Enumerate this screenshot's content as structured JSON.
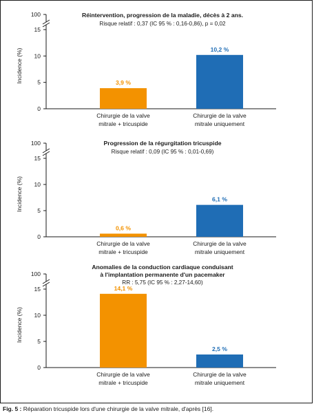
{
  "colors": {
    "orange": "#f39200",
    "blue": "#1f6db5",
    "axis": "#1a1a1a"
  },
  "chart_data": [
    {
      "type": "bar",
      "title": "Réintervention, progression de la maladie, décès à 2 ans.",
      "subtitle": "Risque relatif : 0,37 (IC 95 % : 0,16-0,86), p = 0,02",
      "ylabel": "Incidence (%)",
      "yticks": [
        "0",
        "5",
        "10",
        "15",
        "100"
      ],
      "ylim": [
        0,
        15
      ],
      "axis_break": true,
      "categories": [
        "Chirurgie de la valve mitrale + tricuspide",
        "Chirurgie de la valve mitrale uniquement"
      ],
      "category_lines": [
        [
          "Chirurgie de la valve",
          "mitrale + tricuspide"
        ],
        [
          "Chirurgie de la valve",
          "mitrale uniquement"
        ]
      ],
      "values": [
        3.9,
        10.2
      ],
      "data_labels": [
        "3,9 %",
        "10,2 %"
      ],
      "bar_colors": [
        "orange",
        "blue"
      ]
    },
    {
      "type": "bar",
      "title": "Progression de la régurgitation tricuspide",
      "subtitle": "Risque relatif : 0,09 (IC 95 % : 0,01-0,69)",
      "ylabel": "Incidence (%)",
      "yticks": [
        "0",
        "5",
        "10",
        "15",
        "100"
      ],
      "ylim": [
        0,
        15
      ],
      "axis_break": true,
      "categories": [
        "Chirurgie de la valve mitrale + tricuspide",
        "Chirurgie de la valve mitrale uniquement"
      ],
      "category_lines": [
        [
          "Chirurgie de la valve",
          "mitrale + tricuspide"
        ],
        [
          "Chirurgie de la valve",
          "mitrale uniquement"
        ]
      ],
      "values": [
        0.6,
        6.1
      ],
      "data_labels": [
        "0,6 %",
        "6,1 %"
      ],
      "bar_colors": [
        "orange",
        "blue"
      ]
    },
    {
      "type": "bar",
      "title_lines": [
        "Anomalies de la conduction cardiaque conduisant",
        "à l'implantation permanente d'un pacemaker"
      ],
      "subtitle": "RR : 5,75 (IC 95 % : 2,27-14,60)",
      "ylabel": "Incidence (%)",
      "yticks": [
        "0",
        "5",
        "10",
        "15",
        "100"
      ],
      "ylim": [
        0,
        15
      ],
      "axis_break": true,
      "categories": [
        "Chirurgie de la valve mitrale + tricuspide",
        "Chirurgie de la valve mitrale uniquement"
      ],
      "category_lines": [
        [
          "Chirurgie de la valve",
          "mitrale + tricuspide"
        ],
        [
          "Chirurgie de la valve",
          "mitrale uniquement"
        ]
      ],
      "values": [
        14.1,
        2.5
      ],
      "data_labels": [
        "14,1 %",
        "2,5 %"
      ],
      "bar_colors": [
        "orange",
        "blue"
      ]
    }
  ],
  "caption": {
    "label": "Fig. 5 :",
    "text": " Réparation tricuspide lors d'une chirurgie de la valve mitrale, d'après [16]."
  }
}
